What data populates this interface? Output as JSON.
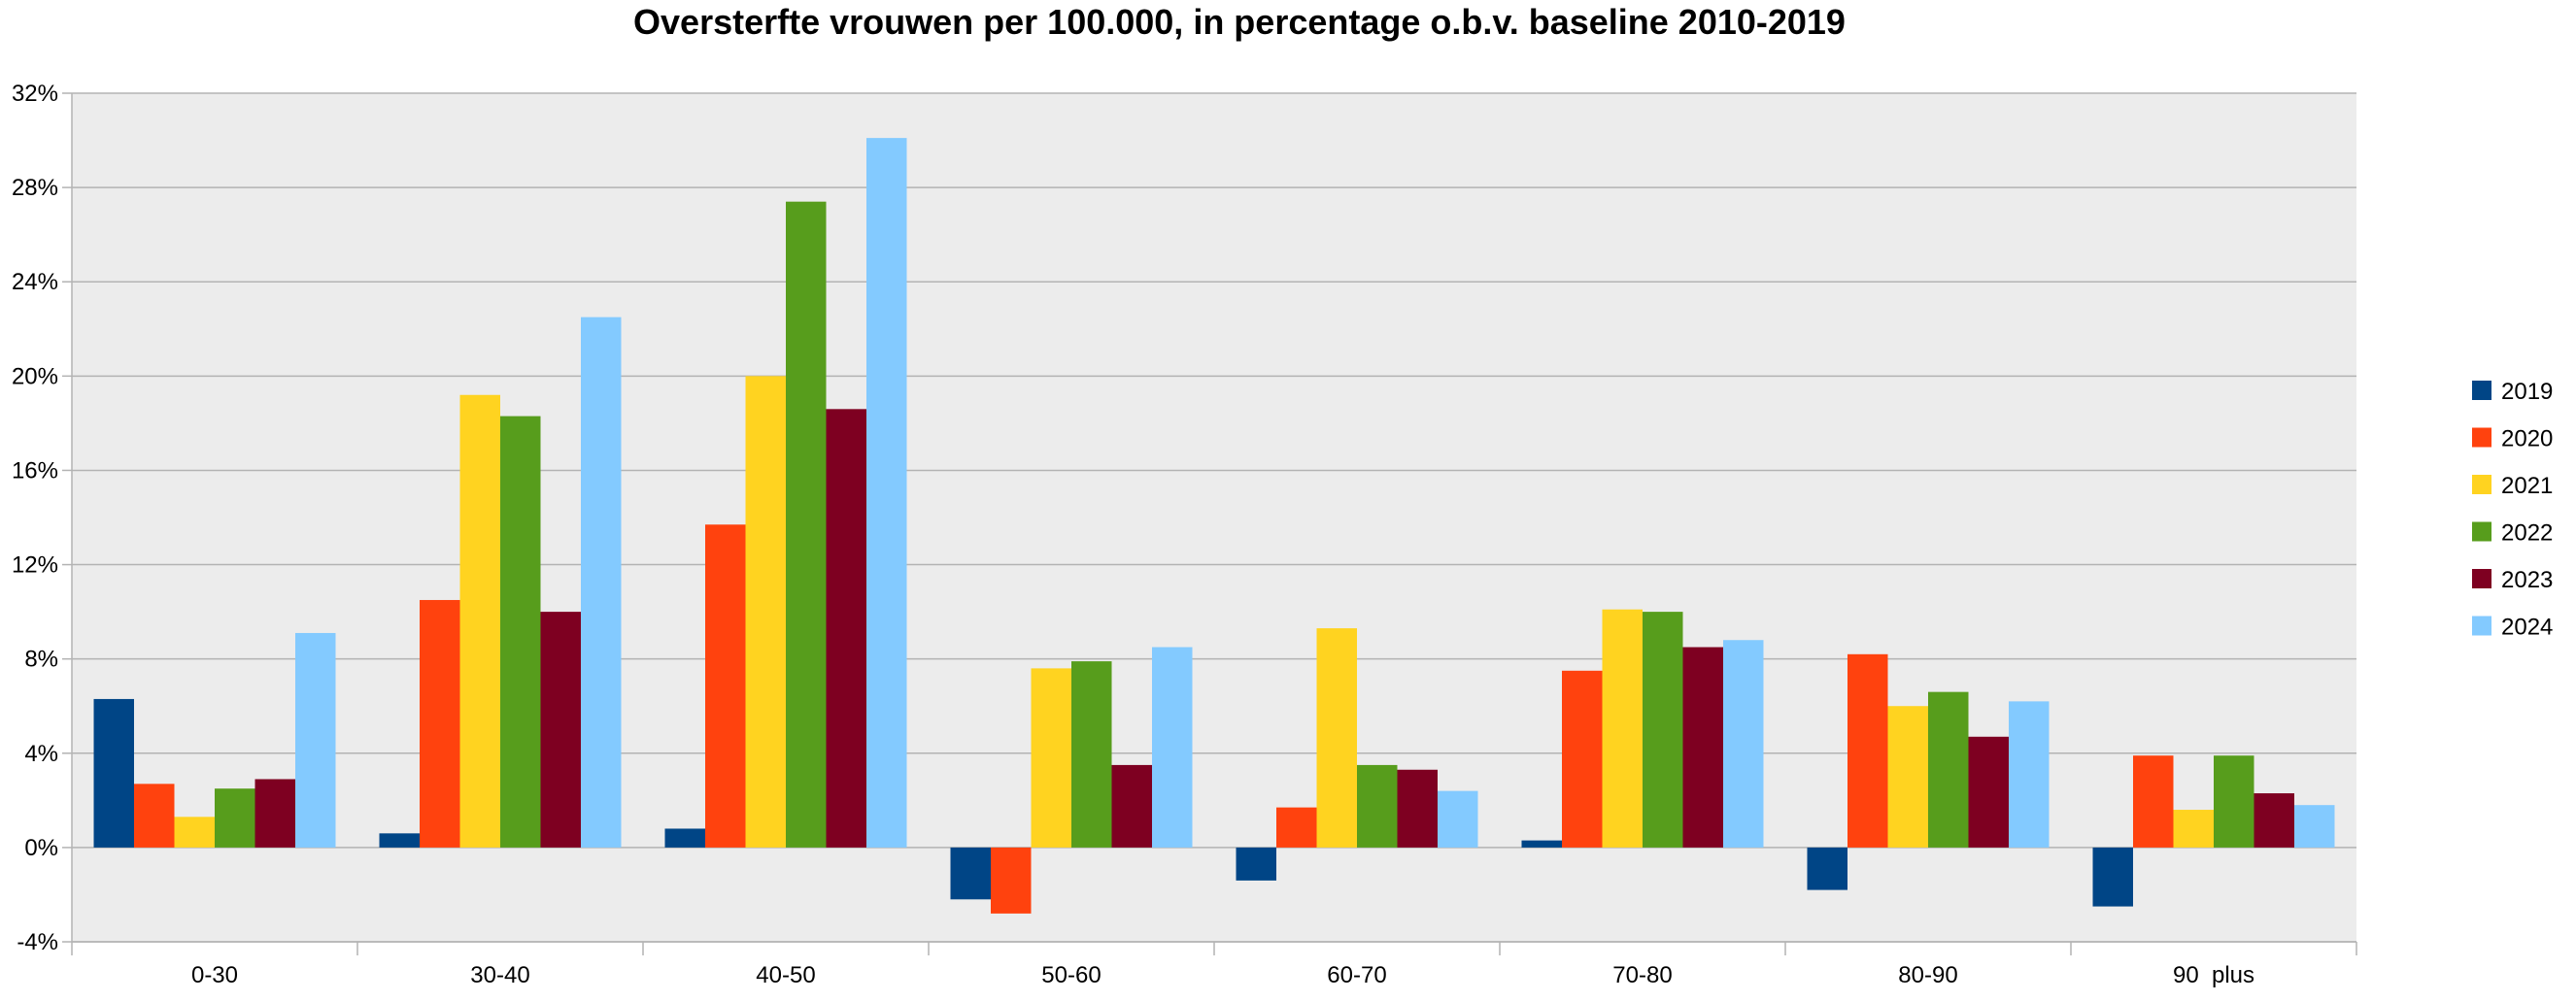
{
  "chart_data": {
    "type": "bar",
    "title": "Oversterfte vrouwen per 100.000, in percentage o.b.v. baseline 2010-2019",
    "xlabel": "",
    "ylabel": "",
    "categories": [
      "0-30",
      "30-40",
      "40-50",
      "50-60",
      "60-70",
      "70-80",
      "80-90",
      "90  plus"
    ],
    "ylim": [
      -4,
      32
    ],
    "yticks": [
      -4,
      0,
      4,
      8,
      12,
      16,
      20,
      24,
      28,
      32
    ],
    "ytick_labels": [
      "-4%",
      "0%",
      "4%",
      "8%",
      "12%",
      "16%",
      "20%",
      "24%",
      "28%",
      "32%"
    ],
    "grid": true,
    "legend_position": "right",
    "background_color": "#ececec",
    "series": [
      {
        "name": "2019",
        "color": "#004586",
        "values": [
          6.3,
          0.6,
          0.8,
          -2.2,
          -1.4,
          0.3,
          -1.8,
          -2.5
        ]
      },
      {
        "name": "2020",
        "color": "#ff420e",
        "values": [
          2.7,
          10.5,
          13.7,
          -2.8,
          1.7,
          7.5,
          8.2,
          3.9
        ]
      },
      {
        "name": "2021",
        "color": "#ffd320",
        "values": [
          1.3,
          19.2,
          20.0,
          7.6,
          9.3,
          10.1,
          6.0,
          1.6
        ]
      },
      {
        "name": "2022",
        "color": "#579d1c",
        "values": [
          2.5,
          18.3,
          27.4,
          7.9,
          3.5,
          10.0,
          6.6,
          3.9
        ]
      },
      {
        "name": "2023",
        "color": "#7e0021",
        "values": [
          2.9,
          10.0,
          18.6,
          3.5,
          3.3,
          8.5,
          4.7,
          2.3
        ]
      },
      {
        "name": "2024",
        "color": "#83caff",
        "values": [
          9.1,
          22.5,
          30.1,
          8.5,
          2.4,
          8.8,
          6.2,
          1.8
        ]
      }
    ]
  }
}
